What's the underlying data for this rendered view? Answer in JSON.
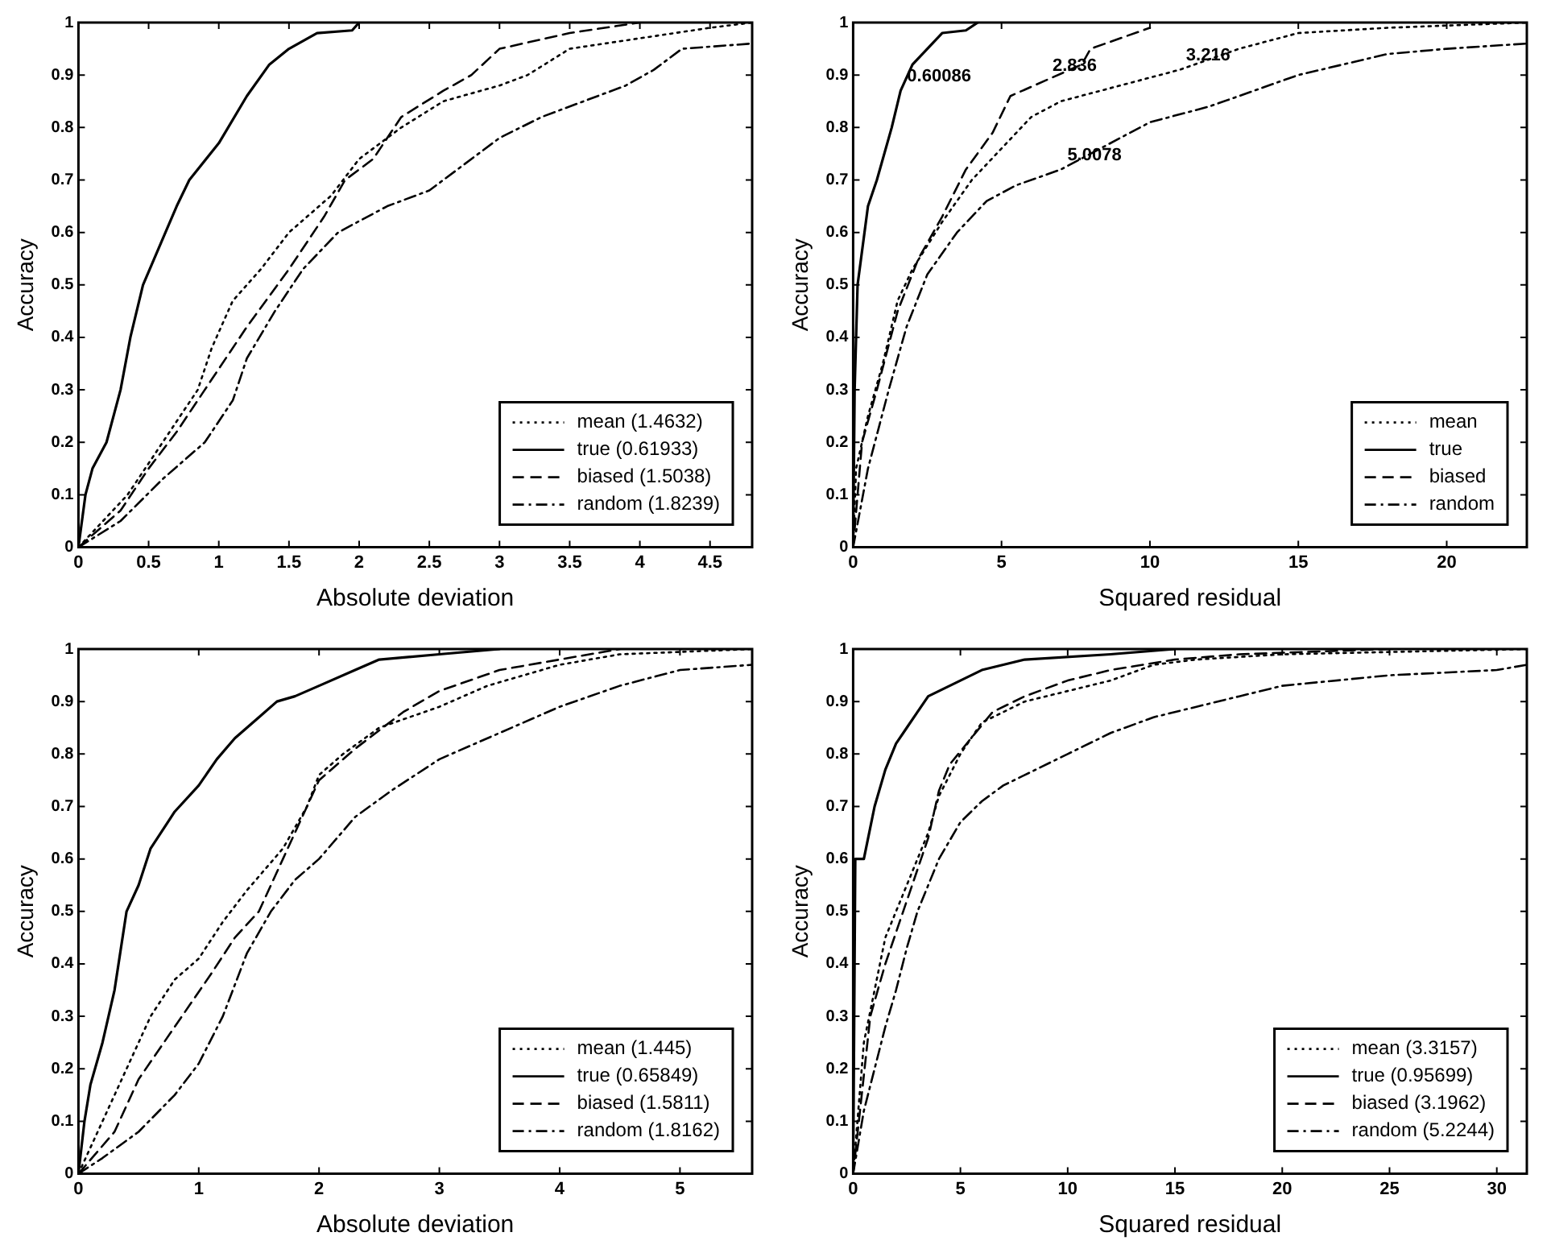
{
  "chart_data": [
    {
      "type": "line",
      "xlabel": "Absolute deviation",
      "ylabel": "Accuracy",
      "xlim": [
        0,
        4.8
      ],
      "xticks": [
        0,
        0.5,
        1,
        1.5,
        2,
        2.5,
        3,
        3.5,
        4,
        4.5
      ],
      "ylim": [
        0,
        1
      ],
      "yticks": [
        0,
        0.1,
        0.2,
        0.3,
        0.4,
        0.5,
        0.6,
        0.7,
        0.8,
        0.9,
        1
      ],
      "grid": false,
      "legend": "bottom right",
      "series": [
        {
          "name": "mean (1.4632)",
          "color": "#000000",
          "line_style": "dotted",
          "x": [
            0,
            0.35,
            0.6,
            0.85,
            0.95,
            1.1,
            1.3,
            1.5,
            1.8,
            2.0,
            2.3,
            2.6,
            3.0,
            3.2,
            3.5,
            4.0,
            4.5,
            4.8
          ],
          "values": [
            0,
            0.1,
            0.2,
            0.3,
            0.38,
            0.47,
            0.53,
            0.6,
            0.67,
            0.74,
            0.8,
            0.85,
            0.88,
            0.9,
            0.95,
            0.97,
            0.99,
            1
          ]
        },
        {
          "name": "true (0.61933)",
          "color": "#000000",
          "line_style": "solid",
          "x": [
            0,
            0.05,
            0.1,
            0.2,
            0.3,
            0.37,
            0.46,
            0.62,
            0.7,
            0.79,
            1.0,
            1.2,
            1.36,
            1.5,
            1.7,
            1.95,
            2.0
          ],
          "values": [
            0,
            0.1,
            0.15,
            0.2,
            0.3,
            0.4,
            0.5,
            0.6,
            0.65,
            0.7,
            0.77,
            0.86,
            0.92,
            0.95,
            0.98,
            0.985,
            1
          ]
        },
        {
          "name": "biased (1.5038)",
          "color": "#000000",
          "line_style": "dashed",
          "x": [
            0,
            0.3,
            0.5,
            0.7,
            0.95,
            1.2,
            1.5,
            1.75,
            1.9,
            2.1,
            2.3,
            2.6,
            2.8,
            3.0,
            3.5,
            4.0
          ],
          "values": [
            0,
            0.07,
            0.15,
            0.22,
            0.32,
            0.42,
            0.53,
            0.63,
            0.7,
            0.74,
            0.82,
            0.87,
            0.9,
            0.95,
            0.98,
            1
          ]
        },
        {
          "name": "random (1.8239)",
          "color": "#000000",
          "line_style": "dashdot",
          "x": [
            0,
            0.3,
            0.6,
            0.9,
            1.1,
            1.2,
            1.4,
            1.6,
            1.85,
            2.2,
            2.5,
            2.75,
            3.0,
            3.3,
            3.6,
            3.9,
            4.1,
            4.3,
            4.8
          ],
          "values": [
            0,
            0.05,
            0.13,
            0.2,
            0.28,
            0.36,
            0.45,
            0.53,
            0.6,
            0.65,
            0.68,
            0.73,
            0.78,
            0.82,
            0.85,
            0.88,
            0.91,
            0.95,
            0.96
          ]
        }
      ]
    },
    {
      "type": "line",
      "xlabel": "Squared residual",
      "ylabel": "Accuracy",
      "xlim": [
        0,
        22.7
      ],
      "xticks": [
        0,
        5,
        10,
        15,
        20
      ],
      "ylim": [
        0,
        1
      ],
      "yticks": [
        0,
        0.1,
        0.2,
        0.3,
        0.4,
        0.5,
        0.6,
        0.7,
        0.8,
        0.9,
        1
      ],
      "grid": false,
      "legend": "bottom right",
      "annotations": [
        {
          "text": "0.60086",
          "x": 1.6,
          "y": 0.87
        },
        {
          "text": "2.836",
          "x": 6.5,
          "y": 0.89
        },
        {
          "text": "3.216",
          "x": 11,
          "y": 0.91
        },
        {
          "text": "5.0078",
          "x": 7,
          "y": 0.72
        }
      ],
      "series": [
        {
          "name": "mean",
          "color": "#000000",
          "line_style": "dotted",
          "x": [
            0,
            0.1,
            0.5,
            1,
            1.5,
            2,
            3,
            4,
            5,
            6,
            7,
            9,
            11,
            13,
            15,
            18,
            22.7
          ],
          "values": [
            0,
            0.15,
            0.25,
            0.35,
            0.47,
            0.53,
            0.62,
            0.7,
            0.76,
            0.82,
            0.85,
            0.88,
            0.91,
            0.95,
            0.98,
            0.99,
            1
          ]
        },
        {
          "name": "true",
          "color": "#000000",
          "line_style": "solid",
          "x": [
            0,
            0.05,
            0.15,
            0.5,
            0.8,
            1.3,
            1.6,
            2.0,
            2.5,
            3,
            3.8,
            4.2
          ],
          "values": [
            0,
            0.3,
            0.5,
            0.65,
            0.7,
            0.8,
            0.87,
            0.92,
            0.95,
            0.98,
            0.985,
            1
          ]
        },
        {
          "name": "biased",
          "color": "#000000",
          "line_style": "dashed",
          "x": [
            0,
            0.3,
            0.8,
            1.5,
            2.2,
            3,
            3.8,
            4.7,
            5.3,
            6.5,
            7.7,
            8,
            10
          ],
          "values": [
            0,
            0.2,
            0.3,
            0.45,
            0.55,
            0.63,
            0.72,
            0.79,
            0.86,
            0.89,
            0.92,
            0.95,
            0.99
          ]
        },
        {
          "name": "random",
          "color": "#000000",
          "line_style": "dashdot",
          "x": [
            0,
            0.5,
            1.2,
            1.8,
            2.5,
            3.5,
            4.5,
            5.5,
            7,
            8,
            10,
            12,
            13,
            15,
            16.5,
            18,
            20,
            22.7
          ],
          "values": [
            0,
            0.15,
            0.3,
            0.42,
            0.52,
            0.6,
            0.66,
            0.69,
            0.72,
            0.75,
            0.81,
            0.84,
            0.86,
            0.9,
            0.92,
            0.94,
            0.95,
            0.96
          ]
        }
      ]
    },
    {
      "type": "line",
      "xlabel": "Absolute deviation",
      "ylabel": "Accuracy",
      "xlim": [
        0,
        5.6
      ],
      "xticks": [
        0,
        1,
        2,
        3,
        4,
        5
      ],
      "ylim": [
        0,
        1
      ],
      "yticks": [
        0,
        0.1,
        0.2,
        0.3,
        0.4,
        0.5,
        0.6,
        0.7,
        0.8,
        0.9,
        1
      ],
      "grid": false,
      "legend": "bottom right",
      "series": [
        {
          "name": "mean (1.445)",
          "color": "#000000",
          "line_style": "dotted",
          "x": [
            0,
            0.2,
            0.4,
            0.6,
            0.8,
            1,
            1.2,
            1.4,
            1.7,
            1.9,
            2.0,
            2.2,
            2.5,
            3.0,
            3.4,
            4.0,
            4.5,
            5.6
          ],
          "values": [
            0,
            0.1,
            0.2,
            0.3,
            0.37,
            0.41,
            0.48,
            0.54,
            0.62,
            0.7,
            0.76,
            0.8,
            0.85,
            0.89,
            0.93,
            0.97,
            0.99,
            1
          ]
        },
        {
          "name": "true (0.65849)",
          "color": "#000000",
          "line_style": "solid",
          "x": [
            0,
            0.05,
            0.1,
            0.2,
            0.3,
            0.4,
            0.5,
            0.6,
            0.8,
            1.0,
            1.15,
            1.3,
            1.5,
            1.65,
            1.8,
            2.0,
            2.3,
            2.5,
            3.0,
            3.5
          ],
          "values": [
            0,
            0.1,
            0.17,
            0.25,
            0.35,
            0.5,
            0.55,
            0.62,
            0.69,
            0.74,
            0.79,
            0.83,
            0.87,
            0.9,
            0.91,
            0.93,
            0.96,
            0.98,
            0.99,
            1
          ]
        },
        {
          "name": "biased (1.5811)",
          "color": "#000000",
          "line_style": "dashed",
          "x": [
            0,
            0.3,
            0.5,
            0.8,
            1.1,
            1.3,
            1.5,
            1.7,
            1.9,
            2.0,
            2.3,
            2.7,
            3.0,
            3.5,
            4.0,
            4.5
          ],
          "values": [
            0,
            0.08,
            0.18,
            0.28,
            0.38,
            0.45,
            0.5,
            0.6,
            0.7,
            0.75,
            0.81,
            0.88,
            0.92,
            0.96,
            0.98,
            1
          ]
        },
        {
          "name": "random (1.8162)",
          "color": "#000000",
          "line_style": "dashdot",
          "x": [
            0,
            0.2,
            0.5,
            0.8,
            1.0,
            1.2,
            1.4,
            1.6,
            1.8,
            2.0,
            2.3,
            2.6,
            3.0,
            3.5,
            4.0,
            4.5,
            5.0,
            5.6
          ],
          "values": [
            0,
            0.03,
            0.08,
            0.15,
            0.21,
            0.3,
            0.42,
            0.5,
            0.56,
            0.6,
            0.68,
            0.73,
            0.79,
            0.84,
            0.89,
            0.93,
            0.96,
            0.97
          ]
        }
      ]
    },
    {
      "type": "line",
      "xlabel": "Squared residual",
      "ylabel": "Accuracy",
      "xlim": [
        0,
        31.4
      ],
      "xticks": [
        0,
        5,
        10,
        15,
        20,
        25,
        30
      ],
      "ylim": [
        0,
        1
      ],
      "yticks": [
        0,
        0.1,
        0.2,
        0.3,
        0.4,
        0.5,
        0.6,
        0.7,
        0.8,
        0.9,
        1
      ],
      "grid": false,
      "legend": "bottom right",
      "series": [
        {
          "name": "mean (3.3157)",
          "color": "#000000",
          "line_style": "dotted",
          "x": [
            0,
            0.5,
            1,
            1.5,
            2,
            2.5,
            3,
            3.5,
            4,
            5,
            6,
            8,
            10,
            12,
            14,
            16,
            20,
            31.4
          ],
          "values": [
            0,
            0.25,
            0.35,
            0.45,
            0.5,
            0.55,
            0.6,
            0.65,
            0.72,
            0.8,
            0.86,
            0.9,
            0.92,
            0.94,
            0.97,
            0.98,
            0.99,
            1
          ]
        },
        {
          "name": "true (0.95699)",
          "color": "#000000",
          "line_style": "solid",
          "x": [
            0,
            0.1,
            0.5,
            1,
            1.5,
            2,
            2.5,
            3,
            3.5,
            4,
            5,
            6,
            7,
            8,
            12,
            15
          ],
          "values": [
            0,
            0.6,
            0.6,
            0.7,
            0.77,
            0.82,
            0.85,
            0.88,
            0.91,
            0.92,
            0.94,
            0.96,
            0.97,
            0.98,
            0.99,
            1
          ]
        },
        {
          "name": "biased (3.1962)",
          "color": "#000000",
          "line_style": "dashed",
          "x": [
            0,
            0.8,
            1.5,
            2.5,
            3.5,
            4,
            4.5,
            5.5,
            6.5,
            8,
            10,
            12,
            15,
            18,
            25
          ],
          "values": [
            0,
            0.3,
            0.4,
            0.52,
            0.64,
            0.73,
            0.78,
            0.83,
            0.88,
            0.91,
            0.94,
            0.96,
            0.98,
            0.99,
            1
          ]
        },
        {
          "name": "random (5.2244)",
          "color": "#000000",
          "line_style": "dashdot",
          "x": [
            0,
            0.5,
            1,
            1.5,
            2,
            2.5,
            3,
            4,
            5,
            6,
            7,
            8,
            10,
            12,
            14,
            16,
            18,
            20,
            25,
            30,
            31.4
          ],
          "values": [
            0,
            0.12,
            0.2,
            0.28,
            0.35,
            0.43,
            0.5,
            0.6,
            0.67,
            0.71,
            0.74,
            0.76,
            0.8,
            0.84,
            0.87,
            0.89,
            0.91,
            0.93,
            0.95,
            0.96,
            0.97
          ]
        }
      ]
    }
  ]
}
